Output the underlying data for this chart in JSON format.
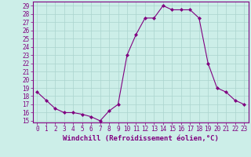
{
  "x": [
    0,
    1,
    2,
    3,
    4,
    5,
    6,
    7,
    8,
    9,
    10,
    11,
    12,
    13,
    14,
    15,
    16,
    17,
    18,
    19,
    20,
    21,
    22,
    23
  ],
  "y": [
    18.5,
    17.5,
    16.5,
    16.0,
    16.0,
    15.8,
    15.5,
    15.0,
    16.2,
    17.0,
    23.0,
    25.5,
    27.5,
    27.5,
    29.0,
    28.5,
    28.5,
    28.5,
    27.5,
    22.0,
    19.0,
    18.5,
    17.5,
    17.0
  ],
  "line_color": "#800080",
  "marker": "D",
  "marker_size": 2,
  "bg_color": "#cceee8",
  "grid_color": "#aad4ce",
  "xlabel": "Windchill (Refroidissement éolien,°C)",
  "xlim": [
    -0.5,
    23.5
  ],
  "ylim": [
    14.8,
    29.5
  ],
  "yticks": [
    15,
    16,
    17,
    18,
    19,
    20,
    21,
    22,
    23,
    24,
    25,
    26,
    27,
    28,
    29
  ],
  "xticks": [
    0,
    1,
    2,
    3,
    4,
    5,
    6,
    7,
    8,
    9,
    10,
    11,
    12,
    13,
    14,
    15,
    16,
    17,
    18,
    19,
    20,
    21,
    22,
    23
  ],
  "xlabel_fontsize": 6.5,
  "tick_fontsize": 5.5,
  "label_color": "#800080",
  "axis_color": "#800080"
}
